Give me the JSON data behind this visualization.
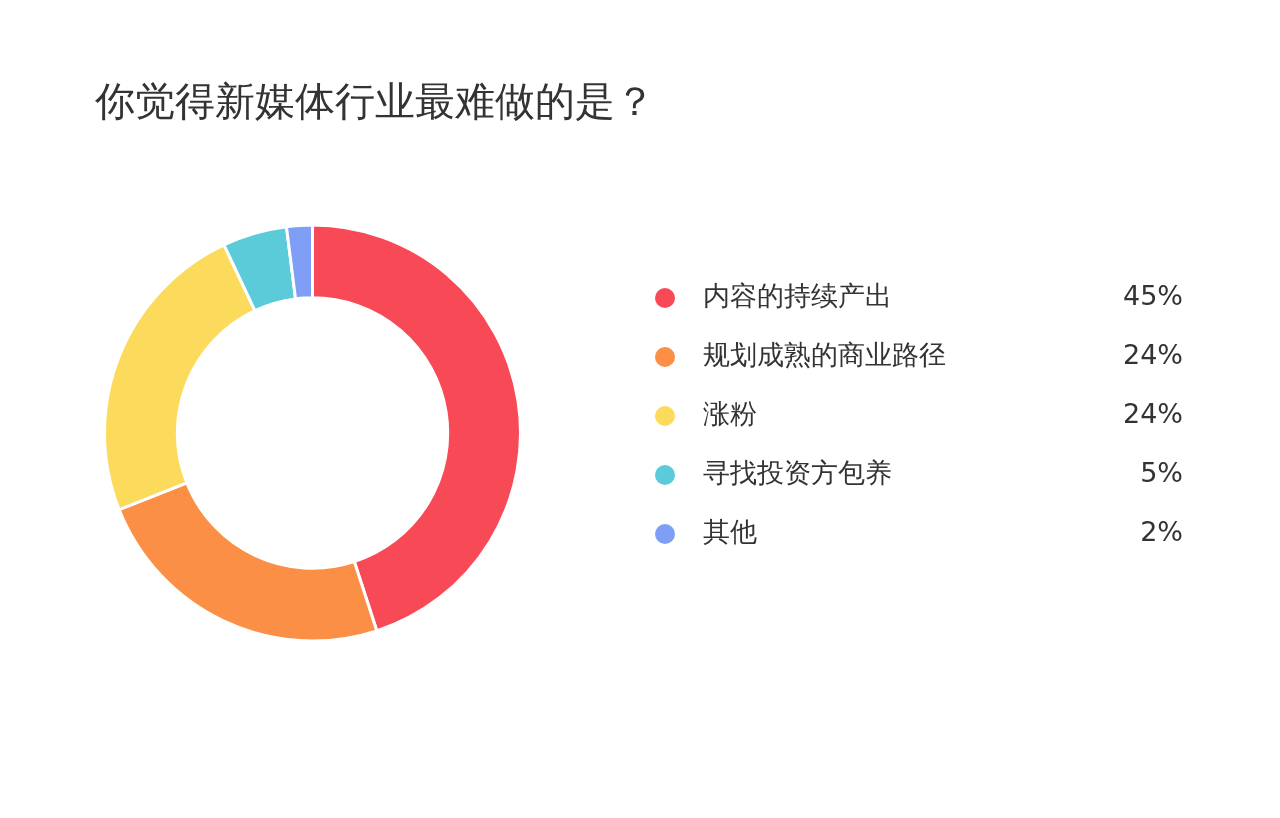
{
  "chart_data": {
    "type": "donut",
    "title": "你觉得新媒体行业最难做的是？",
    "categories": [
      "内容的持续产出",
      "规划成熟的商业路径",
      "涨粉",
      "寻找投资方包养",
      "其他"
    ],
    "values": [
      45,
      24,
      24,
      5,
      2
    ],
    "value_labels": [
      "45%",
      "24%",
      "24%",
      "5%",
      "2%"
    ],
    "colors": [
      "#f84a56",
      "#fb8f45",
      "#fcdb5c",
      "#5bcbd9",
      "#7f9ef5"
    ],
    "legend": "right"
  }
}
